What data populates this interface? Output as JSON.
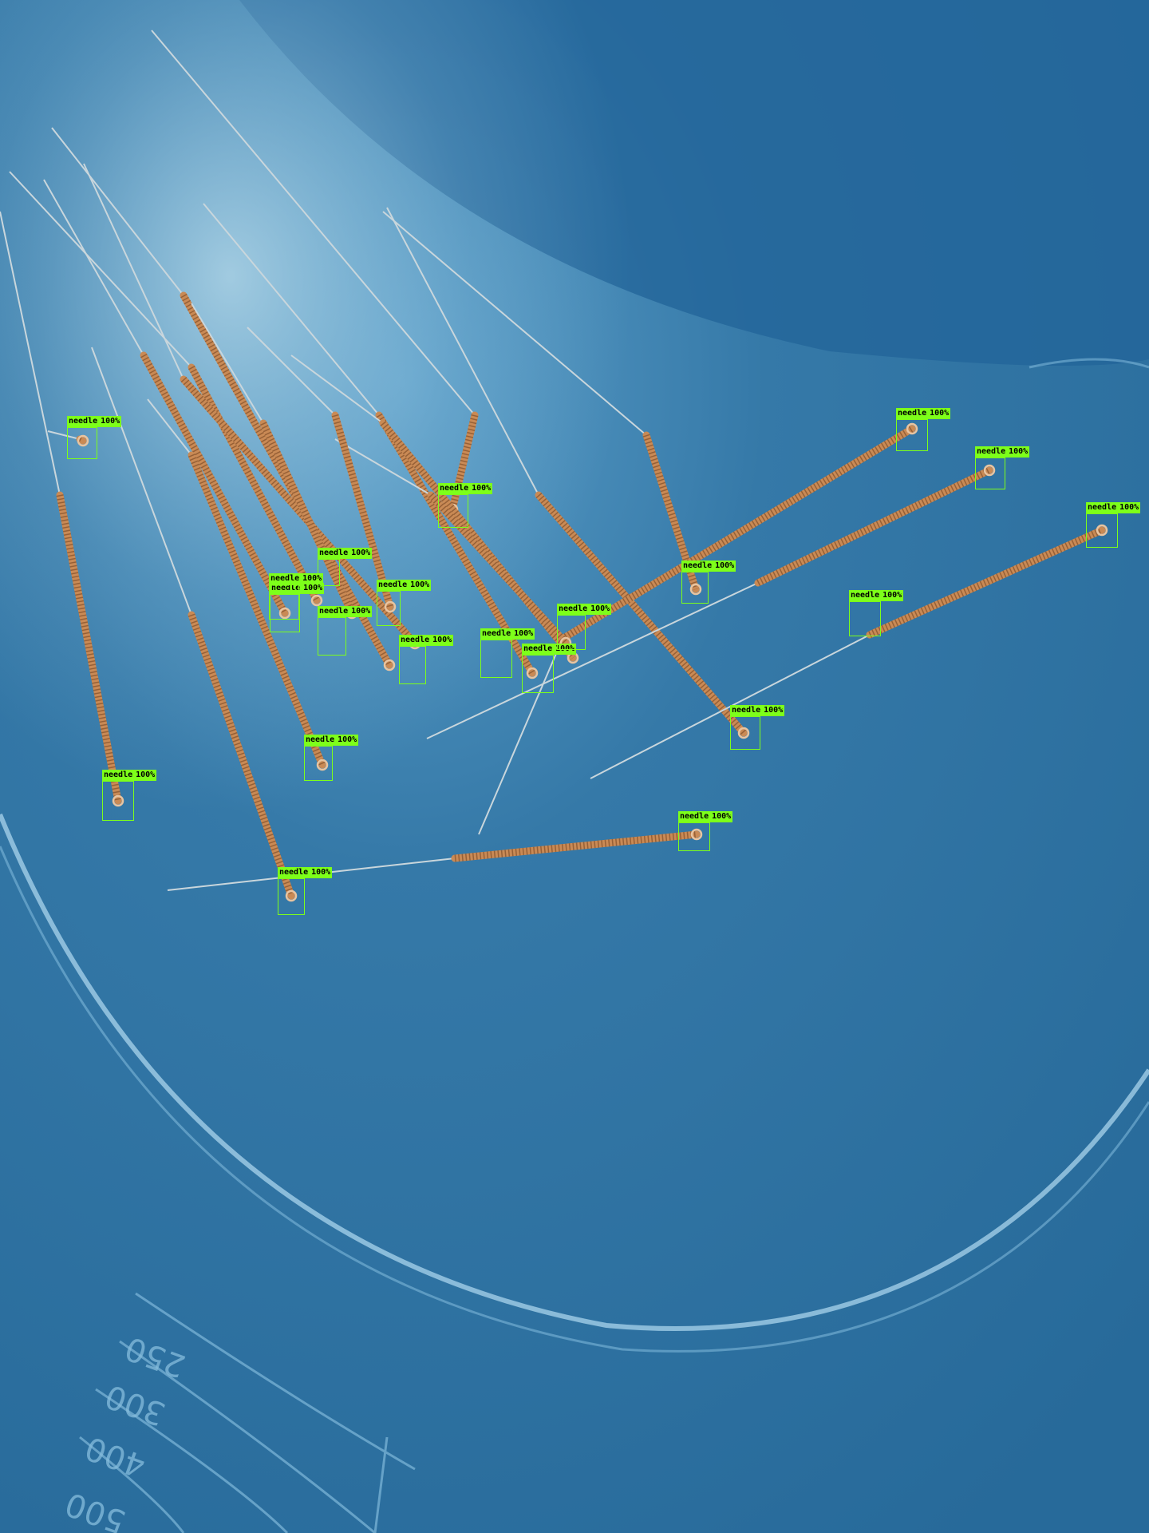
{
  "detections": [
    {
      "label": "needle",
      "score": "100%"
    },
    {
      "label": "needle",
      "score": "100%"
    },
    {
      "label": "needle",
      "score": "100%"
    },
    {
      "label": "needle",
      "score": "100%"
    },
    {
      "label": "needle",
      "score": "100%"
    },
    {
      "label": "needle",
      "score": "100%"
    },
    {
      "label": "needle",
      "score": "100%"
    },
    {
      "label": "needle",
      "score": "100%"
    },
    {
      "label": "needle",
      "score": "100%"
    },
    {
      "label": "needle",
      "score": "100%"
    },
    {
      "label": "needle",
      "score": "100%"
    },
    {
      "label": "needle",
      "score": "100%"
    },
    {
      "label": "needle",
      "score": "100%"
    },
    {
      "label": "needle",
      "score": "100%"
    },
    {
      "label": "needle",
      "score": "100%"
    },
    {
      "label": "needle",
      "score": "100%"
    },
    {
      "label": "needle",
      "score": "100%"
    },
    {
      "label": "needle",
      "score": "100%"
    },
    {
      "label": "needle",
      "score": "100%"
    },
    {
      "label": "needle",
      "score": "100%"
    },
    {
      "label": "needle",
      "score": "100%"
    }
  ],
  "tray_markings": [
    "250",
    "300",
    "400",
    "500"
  ],
  "colors": {
    "tray": "#2a6d9c",
    "box": "#7dff1a",
    "handle": "#c98a55"
  }
}
